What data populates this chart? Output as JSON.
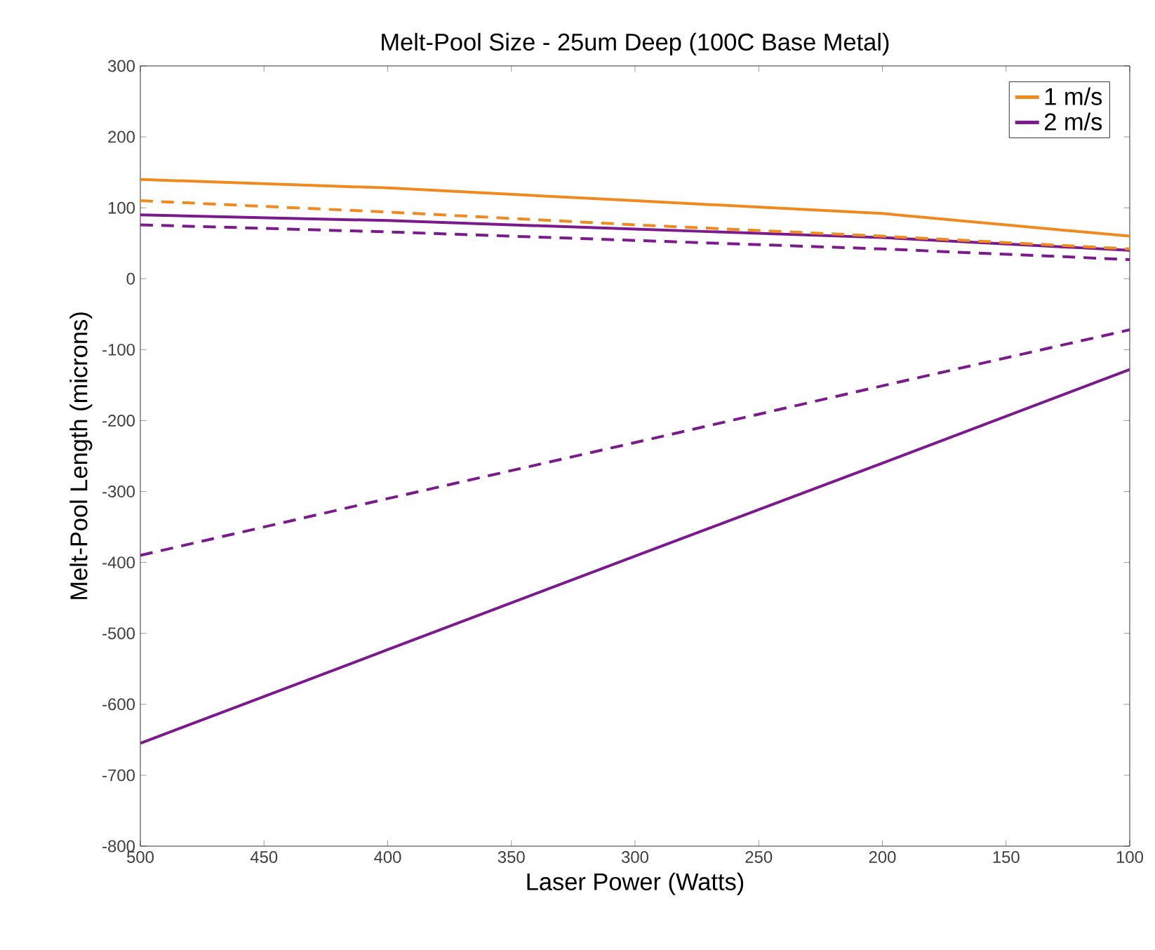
{
  "chart_data": {
    "type": "line",
    "title": "Melt-Pool Size - 25um Deep (100C Base Metal)",
    "xlabel": "Laser Power (Watts)",
    "ylabel": "Melt-Pool Length (microns)",
    "xlim": [
      500,
      100
    ],
    "ylim": [
      -800,
      300
    ],
    "xticks": [
      500,
      450,
      400,
      350,
      300,
      250,
      200,
      150,
      100
    ],
    "yticks": [
      -800,
      -700,
      -600,
      -500,
      -400,
      -300,
      -200,
      -100,
      0,
      100,
      200,
      300
    ],
    "x": [
      500,
      400,
      300,
      200,
      100
    ],
    "legend": "top right",
    "grid": false,
    "marker": "none",
    "series": [
      {
        "name": "1 m/s",
        "color": "#f0891e",
        "line_style": "solid",
        "values": [
          140,
          128,
          110,
          92,
          60
        ]
      },
      {
        "name": "2 m/s",
        "color": "#7a1a8c",
        "line_style": "solid",
        "values": [
          90,
          82,
          70,
          58,
          40
        ]
      },
      {
        "color": "#f0891e",
        "line_style": "dashed",
        "values": [
          110,
          94,
          76,
          60,
          42
        ]
      },
      {
        "color": "#7a1a8c",
        "line_style": "dashed",
        "values": [
          76,
          66,
          54,
          42,
          27
        ]
      },
      {
        "color": "#7a1a8c",
        "line_style": "solid",
        "values": [
          -655,
          -523,
          -391,
          -260,
          -128
        ]
      },
      {
        "color": "#7a1a8c",
        "line_style": "dashed",
        "values": [
          -390,
          -310,
          -231,
          -151,
          -72
        ]
      }
    ]
  }
}
